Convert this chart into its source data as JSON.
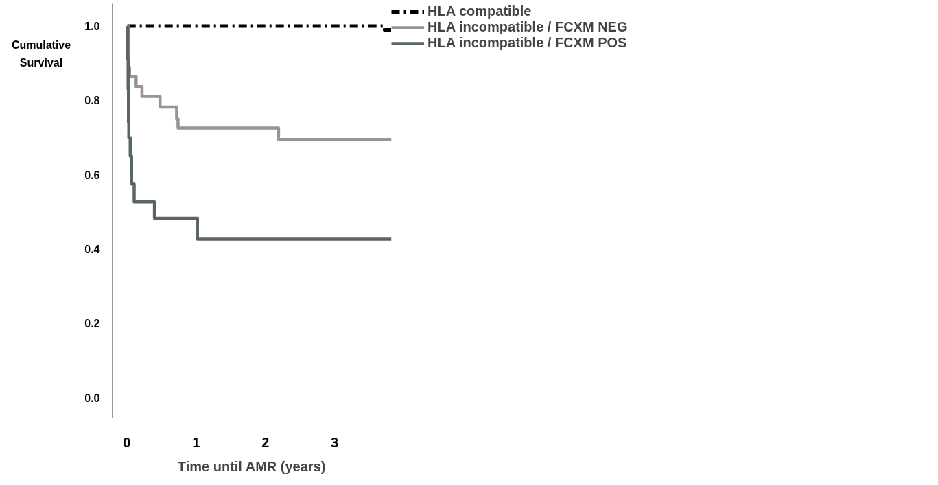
{
  "chart_data": {
    "type": "step",
    "xlabel": "Time until AMR (years)",
    "ylabel": "Cumulative Survival",
    "xlim": [
      -0.21,
      3.82
    ],
    "ylim": [
      -0.055,
      1.06
    ],
    "xticks": [
      0,
      1,
      2,
      3
    ],
    "yticks": [
      {
        "value": 0,
        "label": "0.0"
      },
      {
        "value": 0.2,
        "label": "0.2"
      },
      {
        "value": 0.4,
        "label": "0.4"
      },
      {
        "value": 0.6,
        "label": "0.6"
      },
      {
        "value": 0.8,
        "label": "0.8"
      },
      {
        "value": 1,
        "label": "1.0"
      }
    ],
    "grid": false,
    "legend": "right",
    "series": [
      {
        "name": "HLA compatible",
        "color": "#000000",
        "line_style": "dashdot",
        "x": [
          0.01,
          3.72,
          3.82
        ],
        "values": [
          1.0,
          0.99,
          0.99
        ]
      },
      {
        "name": "HLA incompatible / FCXM NEG",
        "color": "#999393",
        "line_style": "solid",
        "x": [
          0.01,
          0.03,
          0.04,
          0.135,
          0.22,
          0.48,
          0.72,
          0.74,
          2.19,
          3.82
        ],
        "values": [
          1.0,
          0.889,
          0.865,
          0.837,
          0.811,
          0.782,
          0.75,
          0.726,
          0.695,
          0.695
        ]
      },
      {
        "name": "HLA incompatible / FCXM POS",
        "color": "#5a6660",
        "line_style": "solid",
        "x": [
          0.01,
          0.015,
          0.02,
          0.025,
          0.03,
          0.05,
          0.07,
          0.107,
          0.4,
          1.02,
          3.82
        ],
        "values": [
          1.0,
          0.91,
          0.83,
          0.74,
          0.7,
          0.65,
          0.575,
          0.527,
          0.483,
          0.427,
          0.427
        ]
      }
    ]
  }
}
